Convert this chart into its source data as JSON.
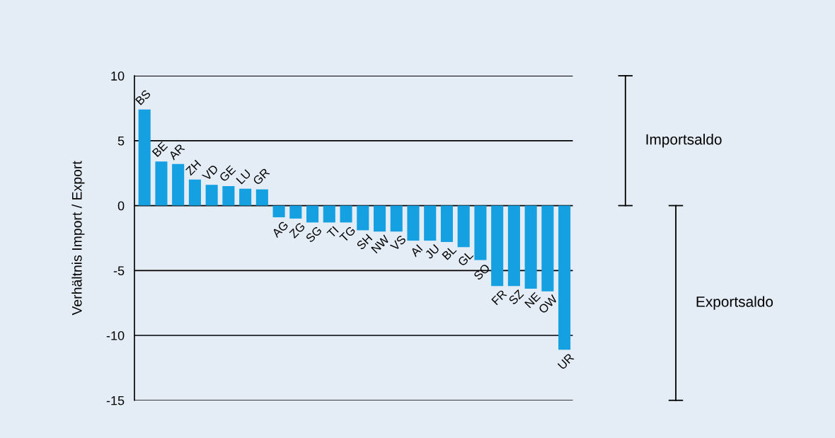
{
  "chart_data": {
    "type": "bar",
    "ylabel": "Verhältnis Import / Export",
    "categories": [
      "BS",
      "BE",
      "AR",
      "ZH",
      "VD",
      "GE",
      "LU",
      "GR",
      "AG",
      "ZG",
      "SG",
      "TI",
      "TG",
      "SH",
      "NW",
      "VS",
      "AI",
      "JU",
      "BL",
      "GL",
      "SO",
      "FR",
      "SZ",
      "NE",
      "OW",
      "UR"
    ],
    "values": [
      7.4,
      3.4,
      3.2,
      2.0,
      1.6,
      1.5,
      1.3,
      1.25,
      -0.9,
      -1.0,
      -1.3,
      -1.3,
      -1.3,
      -1.9,
      -2.0,
      -2.0,
      -2.7,
      -2.7,
      -2.8,
      -3.2,
      -4.2,
      -6.2,
      -6.2,
      -6.4,
      -6.6,
      -11.1
    ],
    "color": "#14a0e1",
    "ylim": [
      -15,
      10
    ],
    "yticks": [
      -15,
      -10,
      -5,
      0,
      5,
      10
    ],
    "grid": "y",
    "annotations": [
      "Importsaldo",
      "Exportsaldo"
    ]
  }
}
